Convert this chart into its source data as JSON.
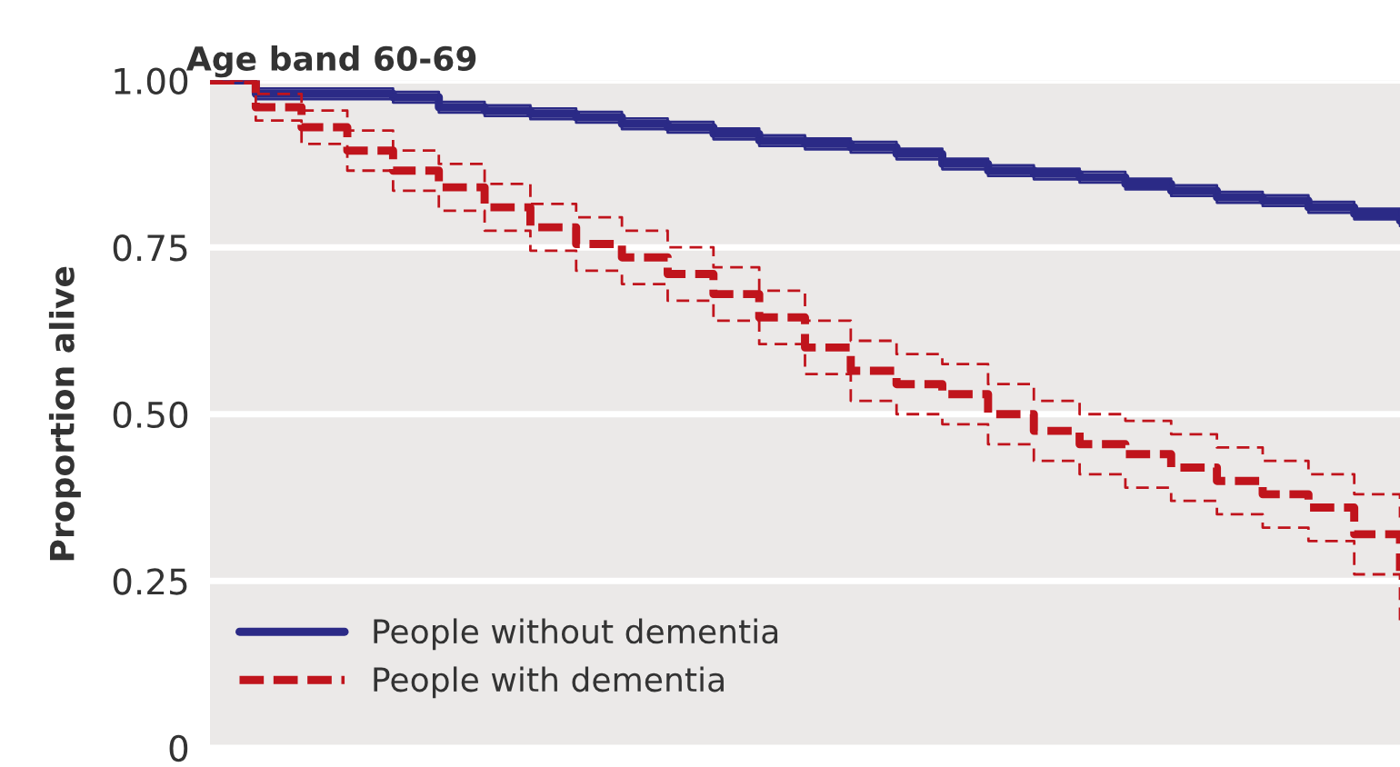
{
  "chart_data": {
    "type": "step",
    "title": "Age band 60-69",
    "ylabel": "Proportion alive",
    "categories": [
      null,
      null,
      null,
      null,
      null,
      null,
      null,
      null,
      null,
      null,
      null,
      null,
      null,
      null,
      null,
      null,
      null,
      null,
      null,
      null,
      null,
      null,
      null,
      null,
      null,
      null,
      null
    ],
    "series": [
      {
        "name": "People without dementia",
        "color": "#2b2a86",
        "line_style": "solid",
        "values": [
          1.0,
          0.98,
          0.98,
          0.98,
          0.975,
          0.96,
          0.955,
          0.95,
          0.945,
          0.935,
          0.93,
          0.92,
          0.91,
          0.905,
          0.9,
          0.89,
          0.875,
          0.865,
          0.86,
          0.855,
          0.845,
          0.835,
          0.825,
          0.82,
          0.81,
          0.8,
          0.79
        ]
      },
      {
        "color": "#2b2a86",
        "line_style": "solid",
        "values": [
          1.0,
          0.972,
          0.972,
          0.972,
          0.967,
          0.952,
          0.947,
          0.942,
          0.937,
          0.927,
          0.922,
          0.912,
          0.902,
          0.897,
          0.892,
          0.882,
          0.867,
          0.857,
          0.852,
          0.847,
          0.837,
          0.827,
          0.817,
          0.812,
          0.802,
          0.792,
          0.782
        ]
      },
      {
        "color": "#2b2a86",
        "line_style": "solid",
        "values": [
          1.0,
          0.988,
          0.988,
          0.988,
          0.983,
          0.968,
          0.963,
          0.958,
          0.953,
          0.943,
          0.938,
          0.928,
          0.918,
          0.913,
          0.908,
          0.898,
          0.883,
          0.873,
          0.868,
          0.863,
          0.853,
          0.843,
          0.833,
          0.828,
          0.818,
          0.808,
          0.798
        ]
      },
      {
        "name": "People with dementia",
        "color": "#c0141c",
        "line_style": "dashed",
        "values": [
          1.0,
          0.96,
          0.93,
          0.895,
          0.865,
          0.84,
          0.81,
          0.78,
          0.755,
          0.735,
          0.71,
          0.68,
          0.645,
          0.6,
          0.565,
          0.545,
          0.53,
          0.5,
          0.475,
          0.455,
          0.44,
          0.42,
          0.4,
          0.38,
          0.36,
          0.32,
          0.265
        ]
      },
      {
        "color": "#c0141c",
        "line_style": "dashed",
        "values": [
          1.0,
          0.94,
          0.905,
          0.865,
          0.835,
          0.805,
          0.775,
          0.745,
          0.715,
          0.695,
          0.67,
          0.64,
          0.605,
          0.56,
          0.52,
          0.5,
          0.485,
          0.455,
          0.43,
          0.41,
          0.39,
          0.37,
          0.35,
          0.33,
          0.31,
          0.26,
          0.185
        ]
      },
      {
        "color": "#c0141c",
        "line_style": "dashed",
        "values": [
          1.0,
          0.98,
          0.955,
          0.925,
          0.895,
          0.875,
          0.845,
          0.815,
          0.795,
          0.775,
          0.75,
          0.72,
          0.685,
          0.64,
          0.61,
          0.59,
          0.575,
          0.545,
          0.52,
          0.5,
          0.49,
          0.47,
          0.45,
          0.43,
          0.41,
          0.38,
          0.345
        ]
      }
    ],
    "ylim": [
      0,
      1.0
    ],
    "yticks": [
      {
        "value": 0,
        "label": "0"
      },
      {
        "value": 0.25,
        "label": "0.25"
      },
      {
        "value": 0.5,
        "label": "0.50"
      },
      {
        "value": 0.75,
        "label": "0.75"
      },
      {
        "value": 1.0,
        "label": "1.00"
      }
    ],
    "tick_labels": "y",
    "grid": "y",
    "legend": "bottom left"
  }
}
